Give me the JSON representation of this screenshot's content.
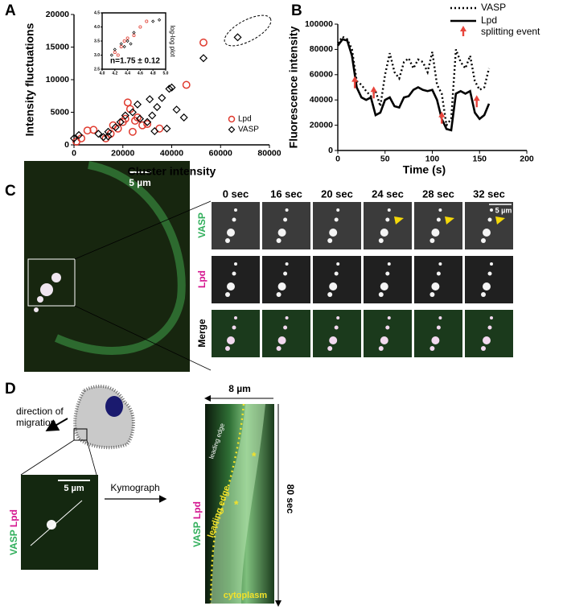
{
  "panels": {
    "a": "A",
    "b": "B",
    "c": "C",
    "d": "D"
  },
  "chart_data": [
    {
      "type": "scatter",
      "xlabel": "Cluster intensity",
      "ylabel": "Intensity fluctuations",
      "xlim": [
        0,
        80000
      ],
      "xticks": [
        0,
        20000,
        40000,
        60000,
        80000
      ],
      "ylim": [
        0,
        20000
      ],
      "yticks": [
        0,
        5000,
        10000,
        15000,
        20000
      ],
      "legend": "lower right",
      "series": [
        {
          "name": "Lpd",
          "color": "#e03a2e",
          "marker": "circle",
          "x": [
            53000,
            46000,
            1000,
            3000,
            5500,
            8000,
            13000,
            15000,
            18000,
            20000,
            21000,
            23000,
            24000,
            25000,
            26000,
            28000,
            30000,
            35000,
            16000,
            22000
          ],
          "values": [
            15700,
            9200,
            500,
            1000,
            2200,
            2300,
            1000,
            1700,
            2500,
            3500,
            4000,
            5500,
            2000,
            3700,
            4200,
            3000,
            3200,
            2500,
            3000,
            6500
          ]
        },
        {
          "name": "VASP",
          "color": "#000000",
          "marker": "diamond",
          "x": [
            67000,
            53000,
            40000,
            39000,
            0,
            2000,
            10000,
            12000,
            14000,
            17000,
            19000,
            21000,
            24000,
            26000,
            27000,
            30000,
            32000,
            34000,
            36000,
            42000,
            45000,
            31000,
            33000,
            38000,
            14000
          ],
          "values": [
            16500,
            13300,
            8800,
            8600,
            1000,
            1500,
            1700,
            1200,
            2000,
            2700,
            3500,
            4500,
            5000,
            6200,
            4000,
            3500,
            4500,
            5800,
            7200,
            5400,
            4200,
            7000,
            2100,
            2500,
            1300
          ]
        }
      ],
      "inset": {
        "type": "scatter",
        "ylabel": "log-log plot",
        "annotation": "n=1.75 ± 0.12",
        "xlim": [
          4,
          5
        ],
        "xticks": [
          {
            "value": 4,
            "label": "4.0"
          },
          4.2,
          4.4,
          4.6,
          4.8,
          {
            "value": 5,
            "label": "5.0"
          }
        ],
        "ylim": [
          2.5,
          4.5
        ],
        "yticks": [
          2.5,
          {
            "value": 3,
            "label": "3.0"
          },
          3.5,
          {
            "value": 4,
            "label": "4.0"
          },
          4.5
        ],
        "series": [
          {
            "name": "Lpd",
            "color": "#e03a2e",
            "marker": "circle",
            "x": [
              4.2,
              4.3,
              4.4,
              4.6,
              4.7,
              4.5,
              4.25,
              4.35
            ],
            "values": [
              3.1,
              3.3,
              3.6,
              4.0,
              4.2,
              3.7,
              3.0,
              3.5
            ]
          },
          {
            "name": "VASP",
            "color": "#000000",
            "marker": "diamond",
            "x": [
              4.15,
              4.2,
              4.3,
              4.4,
              4.5,
              4.8,
              4.9,
              4.35,
              4.45
            ],
            "values": [
              3.0,
              3.2,
              3.4,
              3.5,
              3.8,
              4.2,
              4.25,
              3.3,
              3.4
            ]
          }
        ]
      }
    },
    {
      "type": "line",
      "xlabel": "Time (s)",
      "ylabel": "Fluorescence intensity",
      "xlim": [
        0,
        200
      ],
      "xticks": [
        0,
        50,
        100,
        150,
        200
      ],
      "ylim": [
        0,
        100000
      ],
      "yticks": [
        0,
        20000,
        40000,
        60000,
        80000,
        100000
      ],
      "legend": "upper right",
      "x": [
        0,
        5,
        10,
        15,
        20,
        25,
        30,
        35,
        40,
        45,
        50,
        55,
        60,
        65,
        70,
        75,
        80,
        85,
        90,
        95,
        100,
        105,
        110,
        115,
        120,
        125,
        130,
        135,
        140,
        145,
        150,
        155,
        160
      ],
      "series": [
        {
          "name": "VASP",
          "color": "#000000",
          "dash": "dotted",
          "values": [
            85000,
            90000,
            88000,
            80000,
            55000,
            52000,
            47000,
            43000,
            47000,
            35000,
            60000,
            77000,
            62000,
            57000,
            70000,
            73000,
            65000,
            72000,
            70000,
            62000,
            78000,
            52000,
            45000,
            20000,
            25000,
            80000,
            70000,
            65000,
            75000,
            55000,
            48000,
            50000,
            65000
          ]
        },
        {
          "name": "Lpd",
          "color": "#000000",
          "dash": "solid",
          "values": [
            83000,
            88000,
            87000,
            75000,
            50000,
            42000,
            40000,
            42000,
            28000,
            30000,
            40000,
            42000,
            35000,
            34000,
            42000,
            43000,
            48000,
            50000,
            48000,
            47000,
            48000,
            40000,
            25000,
            17000,
            16000,
            45000,
            47000,
            45000,
            47000,
            30000,
            25000,
            28000,
            37000
          ]
        }
      ],
      "events": {
        "name": "splitting event",
        "color": "#e8453c",
        "x": [
          18,
          38,
          110,
          147
        ],
        "values": [
          48000,
          40000,
          20000,
          33000
        ]
      }
    }
  ],
  "timelapse": {
    "scale_bar": "5 µm",
    "inset_scale_bar": "5 µm",
    "times": [
      "0 sec",
      "16 sec",
      "20 sec",
      "24 sec",
      "28 sec",
      "32 sec"
    ],
    "rows": [
      "VASP",
      "Lpd",
      "Merge"
    ]
  },
  "schematic": {
    "direction": [
      "direction of",
      "migration"
    ],
    "channels": [
      "VASP",
      "Lpd"
    ],
    "scale_bar": "5 µm",
    "arrow_label": "Kymograph",
    "width": "8 µm",
    "duration": "80 sec",
    "edge_label_top": "leading edge",
    "edge_label": "leading edge",
    "cytoplasm": "cytoplasm",
    "asterisks": [
      "*",
      "*"
    ]
  }
}
